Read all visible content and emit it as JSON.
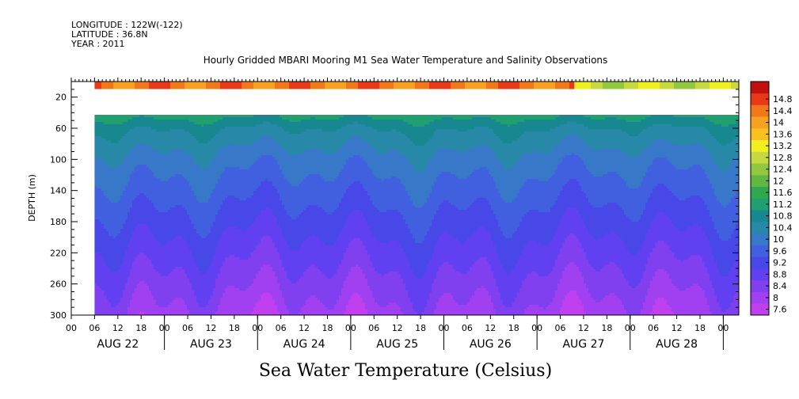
{
  "header": {
    "longitude": "LONGITUDE : 122W(-122)",
    "latitude": "LATITUDE : 36.8N",
    "year": "YEAR : 2011"
  },
  "chart_data": {
    "type": "heatmap",
    "title": "Hourly Gridded MBARI Mooring M1 Sea Water Temperature and Salinity Observations",
    "xlabel": "Sea Water Temperature (Celsius)",
    "ylabel": "DEPTH (m)",
    "x_range": [
      "2011-08-22T00:00",
      "2011-08-29T04:00"
    ],
    "ylim": [
      300,
      0
    ],
    "y_reversed": true,
    "y_ticks": [
      20,
      60,
      100,
      140,
      180,
      220,
      260,
      300
    ],
    "x_hour_ticks": [
      "00",
      "06",
      "12",
      "18"
    ],
    "x_day_labels": [
      "AUG 22",
      "AUG 23",
      "AUG 24",
      "AUG 25",
      "AUG 26",
      "AUG 27",
      "AUG 28"
    ],
    "data_start": "2011-08-22T06:00",
    "data_gap_depth": [
      10,
      40
    ],
    "colorbar": {
      "levels": [
        7.6,
        8,
        8.4,
        8.8,
        9.2,
        9.6,
        10,
        10.4,
        10.8,
        11.2,
        11.6,
        12,
        12.4,
        12.8,
        13.2,
        13.6,
        14,
        14.4,
        14.8
      ],
      "colors": [
        "#c040f0",
        "#a040f0",
        "#8040f0",
        "#6040f0",
        "#4848e8",
        "#4060e0",
        "#3878c8",
        "#2888a8",
        "#188890",
        "#20a070",
        "#30a850",
        "#60b840",
        "#90c840",
        "#c8d840",
        "#f0f020",
        "#f8c020",
        "#f8a020",
        "#f07818",
        "#e83818",
        "#c01010"
      ]
    },
    "depth_profile": [
      {
        "depth": 5,
        "temp": 14.2
      },
      {
        "depth": 40,
        "temp": 11.0
      },
      {
        "depth": 60,
        "temp": 10.4
      },
      {
        "depth": 100,
        "temp": 9.8
      },
      {
        "depth": 140,
        "temp": 9.4
      },
      {
        "depth": 180,
        "temp": 9.0
      },
      {
        "depth": 220,
        "temp": 8.6
      },
      {
        "depth": 260,
        "temp": 8.2
      },
      {
        "depth": 300,
        "temp": 7.8
      }
    ]
  }
}
